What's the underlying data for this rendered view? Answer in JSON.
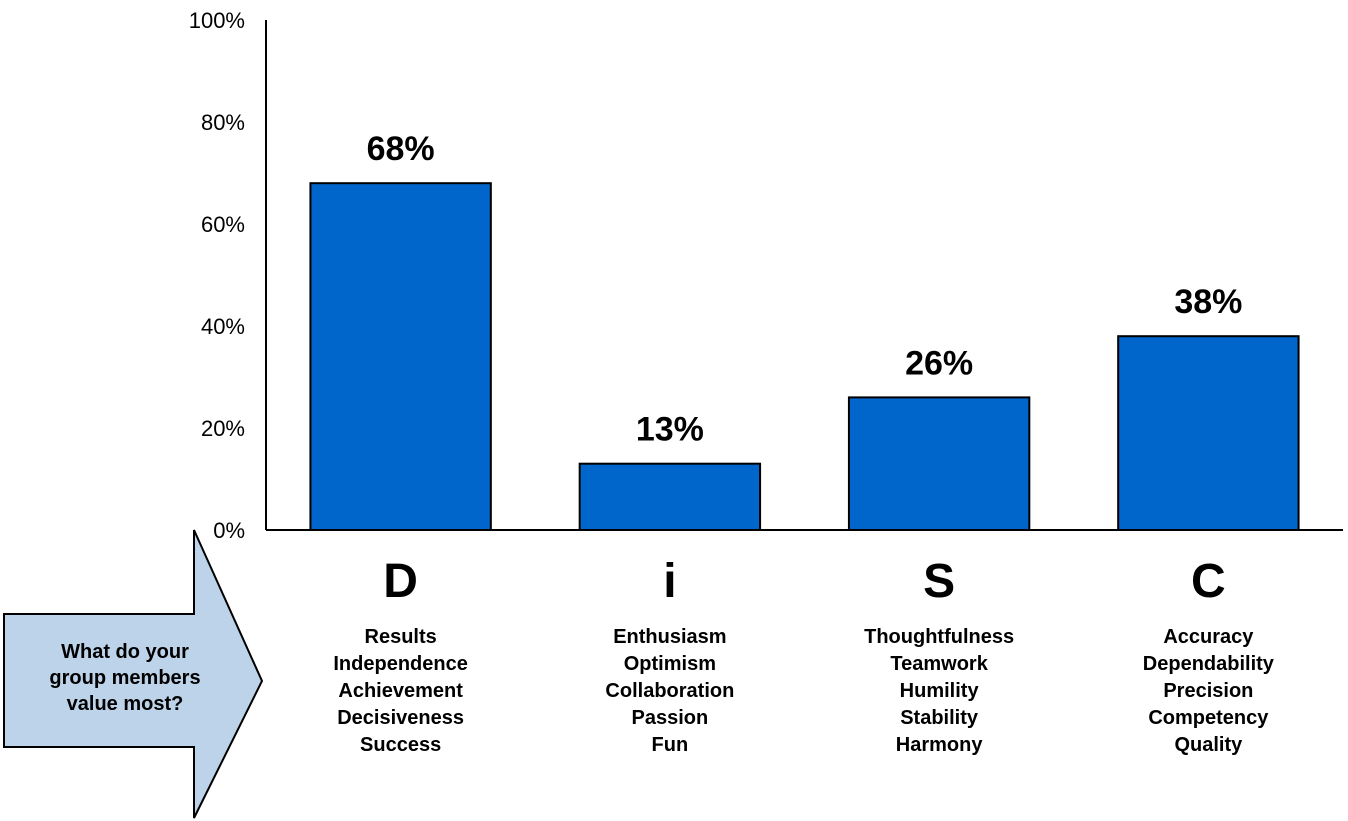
{
  "chart_data": {
    "type": "bar",
    "categories": [
      "D",
      "i",
      "S",
      "C"
    ],
    "values": [
      68,
      13,
      26,
      38
    ],
    "value_labels": [
      "68%",
      "13%",
      "26%",
      "38%"
    ],
    "yticks": [
      "0%",
      "20%",
      "40%",
      "60%",
      "80%",
      "100%"
    ],
    "ylim": [
      0,
      100
    ],
    "bar_color": "#0066cc",
    "grid": false,
    "descriptors": [
      [
        "Results",
        "Independence",
        "Achievement",
        "Decisiveness",
        "Success"
      ],
      [
        "Enthusiasm",
        "Optimism",
        "Collaboration",
        "Passion",
        "Fun"
      ],
      [
        "Thoughtfulness",
        "Teamwork",
        "Humility",
        "Stability",
        "Harmony"
      ],
      [
        "Accuracy",
        "Dependability",
        "Precision",
        "Competency",
        "Quality"
      ]
    ]
  },
  "callout": {
    "lines": [
      "What do your",
      "group members",
      "value most?"
    ],
    "fill_color": "#bdd3ea"
  }
}
